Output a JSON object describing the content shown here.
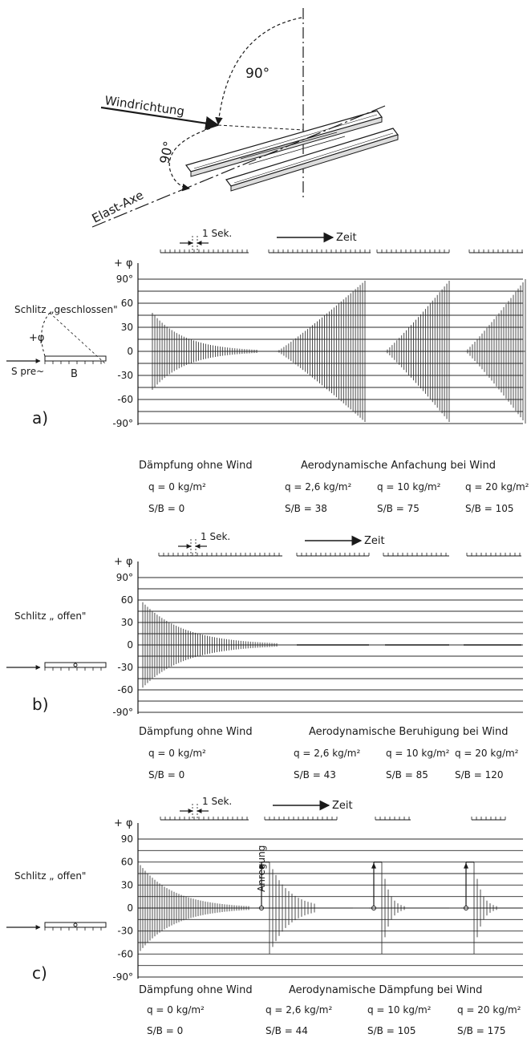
{
  "top_sketch": {
    "label_angle_top": "90°",
    "label_angle_side": "90°",
    "label_wind": "Windrichtung",
    "label_axis": "Elast-Axe"
  },
  "time_scale": {
    "one_second": "1 Sek.",
    "time": "Zeit"
  },
  "chart_data": [
    {
      "type": "line",
      "panel": "a)",
      "ylabel": "+ φ",
      "yticks": [
        "90°",
        "60",
        "30",
        "0",
        "-30",
        "-60",
        "-90°"
      ],
      "ylim": [
        -90,
        90
      ],
      "grid": true,
      "side_title": "Schlitz „geschlossen\"",
      "side_labels": [
        "+φ",
        "S pre~",
        "B"
      ],
      "left_caption": "Dämpfung ohne Wind",
      "right_caption": "Aerodynamische Anfachung bei Wind",
      "series": [
        {
          "q": "q = 0 kg/m²",
          "sb": "S/B = 0",
          "amplitude_start": 48,
          "amplitude_end": 0,
          "behaviour": "decay"
        },
        {
          "q": "q = 2,6 kg/m²",
          "sb": "S/B = 38",
          "amplitude_start": 0,
          "amplitude_end": 88,
          "behaviour": "growth"
        },
        {
          "q": "q = 10 kg/m²",
          "sb": "S/B = 75",
          "amplitude_start": 0,
          "amplitude_end": 88,
          "behaviour": "growth"
        },
        {
          "q": "q = 20 kg/m²",
          "sb": "S/B = 105",
          "amplitude_start": 0,
          "amplitude_end": 90,
          "behaviour": "growth"
        }
      ]
    },
    {
      "type": "line",
      "panel": "b)",
      "ylabel": "+ φ",
      "yticks": [
        "90°",
        "60",
        "30",
        "0",
        "-30",
        "-60",
        "-90°"
      ],
      "ylim": [
        -90,
        90
      ],
      "grid": true,
      "side_title": "Schlitz „ offen\"",
      "left_caption": "Dämpfung ohne Wind",
      "right_caption": "Aerodynamische Beruhigung bei Wind",
      "series": [
        {
          "q": "q = 0 kg/m²",
          "sb": "S/B = 0",
          "amplitude_start": 57,
          "amplitude_end": 0,
          "behaviour": "decay"
        },
        {
          "q": "q = 2,6 kg/m²",
          "sb": "S/B = 43",
          "amplitude_start": 0,
          "amplitude_end": 0,
          "behaviour": "flat"
        },
        {
          "q": "q = 10 kg/m²",
          "sb": "S/B = 85",
          "amplitude_start": 0,
          "amplitude_end": 0,
          "behaviour": "flat"
        },
        {
          "q": "q = 20 kg/m²",
          "sb": "S/B = 120",
          "amplitude_start": 0,
          "amplitude_end": 0,
          "behaviour": "flat"
        }
      ]
    },
    {
      "type": "line",
      "panel": "c)",
      "ylabel": "+ φ",
      "yticks": [
        "90",
        "60",
        "30",
        "0",
        "-30",
        "-60",
        "-90°"
      ],
      "ylim": [
        -90,
        90
      ],
      "grid": true,
      "side_title": "Schlitz „ offen\"",
      "left_caption": "Dämpfung ohne Wind",
      "right_caption": "Aerodynamische Dämpfung bei Wind",
      "annotation": "Anregung",
      "series": [
        {
          "q": "q = 0 kg/m²",
          "sb": "S/B = 0",
          "amplitude_start": 60,
          "amplitude_end": 0,
          "behaviour": "decay"
        },
        {
          "q": "q = 2,6 kg/m²",
          "sb": "S/B = 44",
          "amplitude_start": 60,
          "amplitude_end": 0,
          "behaviour": "excited-decay"
        },
        {
          "q": "q = 10 kg/m²",
          "sb": "S/B = 105",
          "amplitude_start": 60,
          "amplitude_end": 0,
          "behaviour": "excited-decay"
        },
        {
          "q": "q = 20 kg/m²",
          "sb": "S/B = 175",
          "amplitude_start": 60,
          "amplitude_end": 0,
          "behaviour": "excited-decay"
        }
      ]
    }
  ]
}
